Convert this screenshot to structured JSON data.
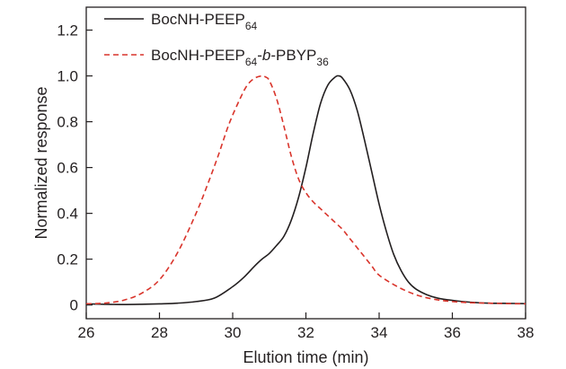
{
  "chart_data": {
    "type": "line",
    "xlabel": "Elution time (min)",
    "ylabel": "Normalized response",
    "xlim": [
      26,
      38
    ],
    "ylim": [
      -0.06,
      1.3
    ],
    "x_ticks": [
      26,
      28,
      30,
      32,
      34,
      36,
      38
    ],
    "x_tick_labels": [
      "26",
      "28",
      "30",
      "32",
      "34",
      "36",
      "38"
    ],
    "y_ticks": [
      0,
      0.2,
      0.4,
      0.6,
      0.8,
      1.0,
      1.2
    ],
    "y_tick_labels": [
      "0",
      "0.2",
      "0.4",
      "0.6",
      "0.8",
      "1.0",
      "1.2"
    ],
    "grid": false,
    "legend_position": "top-left",
    "series": [
      {
        "legend": {
          "main": "BocNH-PEEP",
          "sub": "64",
          "rest": ""
        },
        "color": "#231f20",
        "dash": "solid",
        "x": [
          26,
          26.5,
          27,
          27.5,
          28,
          28.5,
          29,
          29.5,
          30,
          30.3,
          30.6,
          30.8,
          31,
          31.2,
          31.4,
          31.6,
          31.8,
          32,
          32.2,
          32.4,
          32.6,
          32.8,
          32.9,
          33,
          33.2,
          33.4,
          33.6,
          33.8,
          34,
          34.2,
          34.4,
          34.6,
          34.8,
          35,
          35.3,
          35.6,
          36,
          36.5,
          37,
          37.5,
          38
        ],
        "y": [
          0.005,
          0.003,
          0.002,
          0.003,
          0.005,
          0.008,
          0.015,
          0.03,
          0.08,
          0.12,
          0.17,
          0.2,
          0.225,
          0.26,
          0.3,
          0.37,
          0.47,
          0.6,
          0.75,
          0.88,
          0.96,
          0.995,
          1.0,
          0.99,
          0.94,
          0.85,
          0.72,
          0.58,
          0.44,
          0.32,
          0.22,
          0.15,
          0.1,
          0.07,
          0.045,
          0.03,
          0.02,
          0.012,
          0.008,
          0.007,
          0.006
        ]
      },
      {
        "legend": {
          "main": "BocNH-PEEP",
          "sub": "64",
          "rest": "-",
          "italic": "b",
          "rest2": "-PBYP",
          "sub2": "36"
        },
        "color": "#d9342b",
        "dash": "dashed",
        "x": [
          26,
          26.5,
          27,
          27.5,
          28,
          28.5,
          29,
          29.3,
          29.6,
          29.9,
          30.2,
          30.4,
          30.6,
          30.8,
          30.9,
          31,
          31.2,
          31.4,
          31.6,
          31.8,
          32,
          32.2,
          32.4,
          32.6,
          32.8,
          33,
          33.2,
          33.5,
          33.8,
          34,
          34.5,
          35,
          35.5,
          36,
          36.5,
          37,
          37.5,
          38
        ],
        "y": [
          0.005,
          0.008,
          0.02,
          0.05,
          0.11,
          0.23,
          0.4,
          0.52,
          0.65,
          0.79,
          0.9,
          0.96,
          0.99,
          1.0,
          0.995,
          0.98,
          0.9,
          0.78,
          0.65,
          0.55,
          0.49,
          0.45,
          0.42,
          0.39,
          0.36,
          0.33,
          0.29,
          0.23,
          0.17,
          0.13,
          0.08,
          0.045,
          0.025,
          0.015,
          0.01,
          0.008,
          0.006,
          0.005
        ]
      }
    ]
  }
}
